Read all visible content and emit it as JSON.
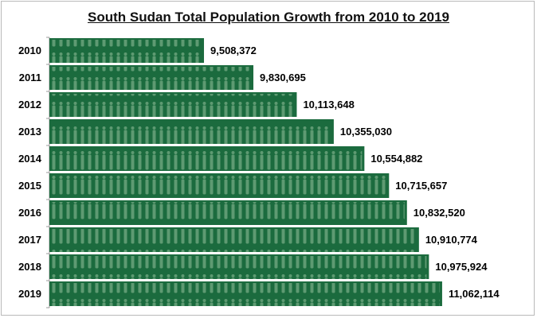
{
  "chart_data": {
    "type": "bar",
    "orientation": "horizontal",
    "title": "South Sudan Total Population Growth from 2010 to 2019",
    "categories": [
      "2010",
      "2011",
      "2012",
      "2013",
      "2014",
      "2015",
      "2016",
      "2017",
      "2018",
      "2019"
    ],
    "values": [
      9508372,
      9830695,
      10113648,
      10355030,
      10554882,
      10715657,
      10832520,
      10910774,
      10975924,
      11062114
    ],
    "value_labels": [
      "9,508,372",
      "9,830,695",
      "10,113,648",
      "10,355,030",
      "10,554,882",
      "10,715,657",
      "10,832,520",
      "10,910,774",
      "10,975,924",
      "11,062,114"
    ],
    "xlim": [
      8500000,
      11500000
    ],
    "grid": false,
    "legend": "none",
    "colors": {
      "bar": "#1b6b3e",
      "figures": "#5e9a72",
      "axis": "#9a9a9a"
    }
  }
}
